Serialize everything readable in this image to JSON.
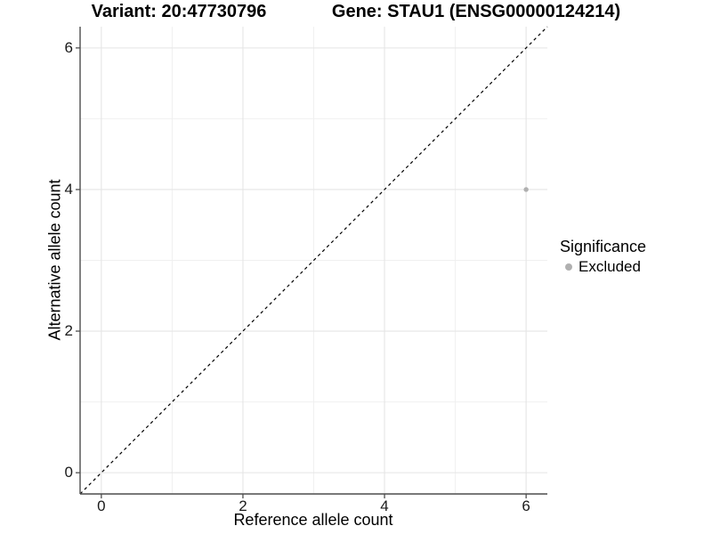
{
  "chart_data": {
    "type": "scatter",
    "title_left": "Variant: 20:47730796",
    "title_right": "Gene: STAU1 (ENSG00000124214)",
    "xlabel": "Reference allele count",
    "ylabel": "Alternative allele count",
    "xlim": [
      -0.3,
      6.3
    ],
    "ylim": [
      -0.3,
      6.3
    ],
    "xticks": [
      0,
      2,
      4,
      6
    ],
    "yticks": [
      0,
      2,
      4,
      6
    ],
    "xminor": [
      1,
      3,
      5
    ],
    "yminor": [
      1,
      3,
      5
    ],
    "grid": "on",
    "identity_line": {
      "slope": 1,
      "intercept": 0,
      "style": "dashed",
      "color": "#000000"
    },
    "series": [
      {
        "name": "Excluded",
        "color": "#b0b0b0",
        "points": [
          {
            "x": 6,
            "y": 4
          }
        ]
      }
    ],
    "legend": {
      "title": "Significance",
      "position": "right",
      "entries": [
        {
          "label": "Excluded",
          "color": "#b0b0b0"
        }
      ]
    }
  },
  "colors": {
    "background": "#ffffff",
    "grid_major": "#e5e5e5",
    "grid_minor": "#f0f0f0",
    "axis_line": "#4d4d4d",
    "tick_text": "#1a1a1a",
    "title_text": "#000000",
    "point": "#b0b0b0"
  }
}
